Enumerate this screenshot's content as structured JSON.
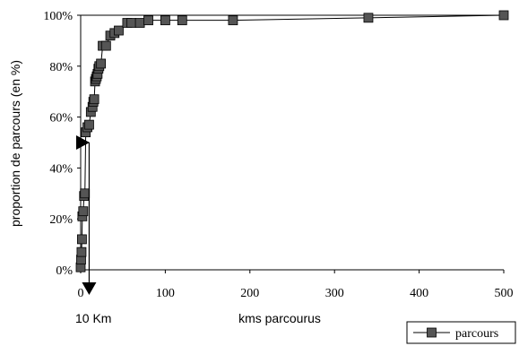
{
  "chart_data": {
    "type": "line",
    "xlabel": "kms parcourus",
    "ylabel": "proportion de parcours (en %)",
    "xlim": [
      0,
      500
    ],
    "ylim": [
      0,
      100
    ],
    "x_ticks": [
      "0",
      "100",
      "200",
      "300",
      "400",
      "500"
    ],
    "y_ticks": [
      "0%",
      "20%",
      "40%",
      "60%",
      "80%",
      "100%"
    ],
    "grid": false,
    "legend_position": "bottom-right",
    "series": [
      {
        "name": "parcours",
        "color": "#555555",
        "marker": "square",
        "x": [
          0,
          0.5,
          1,
          1.5,
          2,
          3,
          4,
          5,
          6,
          8,
          10,
          12,
          14,
          15,
          16,
          17,
          18,
          19,
          20,
          21,
          22,
          24,
          26,
          30,
          35,
          40,
          45,
          55,
          60,
          70,
          80,
          100,
          120,
          180,
          340,
          500
        ],
        "y": [
          1,
          4,
          7,
          12,
          21,
          23,
          29,
          30,
          54,
          56,
          57,
          62,
          64,
          66,
          67,
          74,
          75,
          76,
          77,
          79,
          80,
          81,
          88,
          88,
          92,
          93,
          94,
          97,
          97,
          97,
          98,
          98,
          98,
          98,
          99,
          100
        ]
      }
    ],
    "annotations": {
      "median_marker_y": 50,
      "distance_marker_x": 10,
      "distance_label": "10 Km"
    }
  }
}
